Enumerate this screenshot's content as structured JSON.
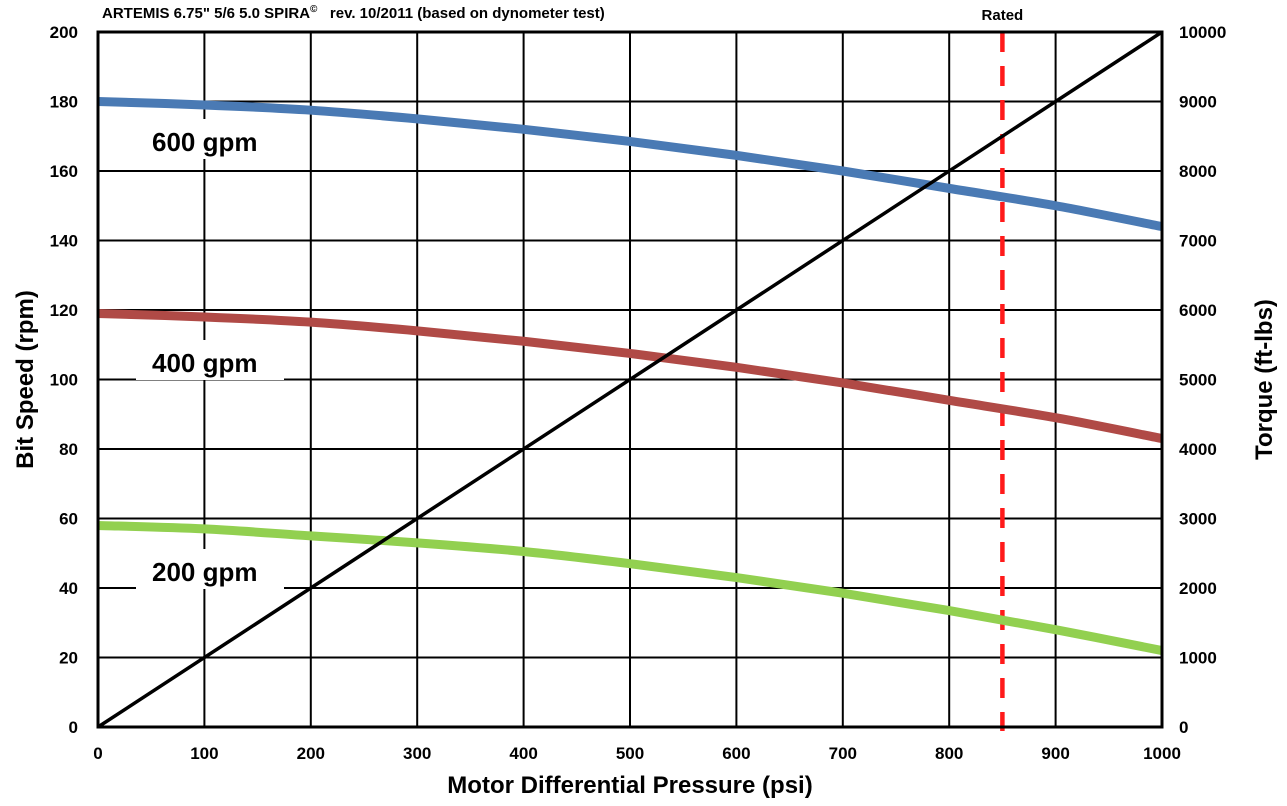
{
  "chart_data": {
    "type": "line",
    "title_main": "ARTEMIS 6.75\" 5/6 5.0 SPIRA",
    "title_symbol": "©",
    "title_rest": "rev. 10/2011 (based on dynometer test)",
    "xlabel": "Motor Differential Pressure (psi)",
    "ylabel": "Bit Speed (rpm)",
    "y2label": "Torque (ft-lbs)",
    "xlim": [
      0,
      1000
    ],
    "ylim": [
      0,
      200
    ],
    "y2lim": [
      0,
      10000
    ],
    "x_ticks": [
      "0",
      "100",
      "200",
      "300",
      "400",
      "500",
      "600",
      "700",
      "800",
      "900",
      "1000"
    ],
    "y_ticks": [
      "0",
      "20",
      "40",
      "60",
      "80",
      "100",
      "120",
      "140",
      "160",
      "180",
      "200"
    ],
    "y2_ticks": [
      "0",
      "1000",
      "2000",
      "3000",
      "4000",
      "5000",
      "6000",
      "7000",
      "8000",
      "9000",
      "10000"
    ],
    "grid": true,
    "series": [
      {
        "name": "600 gpm",
        "axis": "left",
        "color": "#4a7ab4",
        "x": [
          0,
          100,
          200,
          300,
          400,
          500,
          600,
          700,
          800,
          900,
          1000
        ],
        "values": [
          180,
          179,
          177.5,
          175,
          172,
          168.5,
          164.5,
          160,
          155,
          150,
          144
        ]
      },
      {
        "name": "400 gpm",
        "axis": "left",
        "color": "#b04a46",
        "x": [
          0,
          100,
          200,
          300,
          400,
          500,
          600,
          700,
          800,
          900,
          1000
        ],
        "values": [
          119,
          118,
          116.5,
          114,
          111,
          107.5,
          103.5,
          99,
          94,
          89,
          83
        ]
      },
      {
        "name": "200 gpm",
        "axis": "left",
        "color": "#92d050",
        "x": [
          0,
          100,
          200,
          300,
          400,
          500,
          600,
          700,
          800,
          900,
          1000
        ],
        "values": [
          58,
          57,
          55,
          53,
          50.5,
          47,
          43,
          38.5,
          33.5,
          28,
          22
        ]
      },
      {
        "axis": "right",
        "color": "#000000",
        "x": [
          0,
          1000
        ],
        "values": [
          0,
          10000
        ]
      }
    ],
    "rated_line": {
      "label": "Rated",
      "x": 850,
      "color": "#ff1a1a"
    }
  }
}
